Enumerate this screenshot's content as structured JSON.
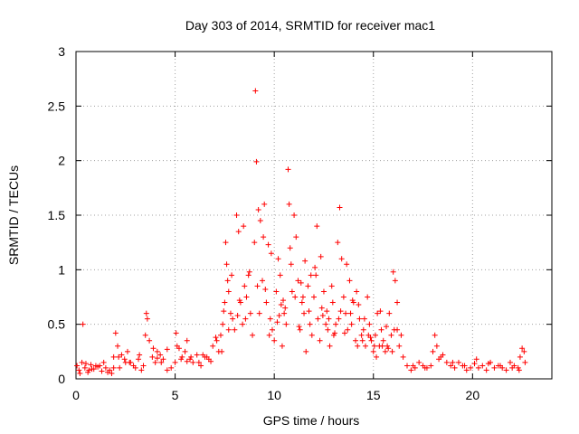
{
  "chart_data": {
    "type": "scatter",
    "title": "Day 303 of 2014, SRMTID for receiver mac1",
    "xlabel": "GPS time / hours",
    "ylabel": "SRMTID / TECUs",
    "xlim": [
      0,
      24
    ],
    "ylim": [
      0,
      3
    ],
    "xticks": [
      0,
      5,
      10,
      15,
      20
    ],
    "yticks": [
      0,
      0.5,
      1,
      1.5,
      2,
      2.5,
      3
    ],
    "xtick_labels": [
      "0",
      "5",
      "10",
      "15",
      "20"
    ],
    "ytick_labels": [
      "0",
      "0.5",
      "1",
      "1.5",
      "2",
      "2.5",
      "3"
    ],
    "grid": true,
    "marker": "plus",
    "color": "#ff0000",
    "series": [
      {
        "name": "SRMTID",
        "x": [
          0.05,
          0.15,
          0.3,
          0.45,
          0.6,
          0.75,
          0.9,
          1.1,
          1.3,
          1.5,
          1.7,
          1.8,
          1.9,
          2.0,
          2.1,
          2.15,
          2.3,
          2.45,
          2.6,
          2.75,
          2.9,
          3.0,
          3.15,
          3.3,
          3.5,
          3.55,
          3.6,
          3.7,
          3.85,
          4.0,
          4.1,
          4.25,
          4.4,
          4.6,
          4.8,
          5.0,
          5.05,
          5.1,
          5.2,
          5.35,
          5.5,
          5.6,
          5.75,
          5.9,
          6.1,
          6.3,
          6.5,
          6.7,
          6.9,
          7.1,
          7.2,
          7.3,
          7.4,
          7.5,
          7.55,
          7.6,
          7.65,
          7.7,
          7.8,
          7.9,
          8.0,
          8.1,
          8.2,
          8.3,
          8.4,
          8.5,
          8.6,
          8.7,
          8.8,
          8.9,
          9.0,
          9.05,
          9.1,
          9.2,
          9.3,
          9.4,
          9.5,
          9.6,
          9.7,
          9.8,
          9.9,
          10.0,
          10.1,
          10.2,
          10.3,
          10.4,
          10.5,
          10.6,
          10.7,
          10.75,
          10.8,
          10.9,
          11.0,
          11.1,
          11.2,
          11.3,
          11.4,
          11.5,
          11.6,
          11.7,
          11.8,
          11.9,
          12.0,
          12.1,
          12.2,
          12.3,
          12.4,
          12.5,
          12.6,
          12.7,
          12.8,
          12.9,
          13.0,
          13.1,
          13.2,
          13.3,
          13.4,
          13.5,
          13.6,
          13.7,
          13.8,
          13.9,
          14.0,
          14.1,
          14.2,
          14.3,
          14.4,
          14.5,
          14.6,
          14.7,
          14.8,
          14.9,
          15.0,
          15.1,
          15.2,
          15.3,
          15.4,
          15.5,
          15.6,
          15.7,
          15.8,
          15.9,
          16.0,
          16.1,
          16.2,
          16.3,
          16.5,
          16.7,
          16.9,
          17.1,
          17.3,
          17.5,
          17.7,
          17.9,
          18.0,
          18.1,
          18.2,
          18.3,
          18.5,
          18.7,
          18.9,
          19.1,
          19.3,
          19.5,
          19.7,
          19.9,
          20.1,
          20.3,
          20.5,
          20.7,
          20.9,
          21.1,
          21.3,
          21.5,
          21.7,
          21.9,
          22.1,
          22.3,
          22.4,
          22.5,
          22.6,
          22.65,
          0.2,
          0.5,
          0.8,
          1.2,
          1.9,
          2.5,
          3.2,
          4.1,
          4.6,
          5.6,
          6.6,
          7.05,
          7.45,
          7.85,
          8.25,
          8.55,
          9.15,
          9.45,
          9.75,
          10.15,
          10.35,
          10.55,
          11.05,
          11.35,
          11.55,
          11.85,
          12.15,
          12.45,
          12.75,
          13.05,
          13.35,
          13.65,
          13.95,
          14.25,
          14.55,
          14.85,
          15.15,
          15.45,
          15.75,
          16.05,
          16.2,
          0.35,
          0.65,
          1.0,
          1.4,
          1.6,
          2.2,
          2.7,
          3.4,
          3.9,
          4.3,
          5.3,
          5.8,
          6.2,
          6.4,
          6.8,
          7.35,
          7.7,
          8.15,
          8.45,
          8.75,
          9.25,
          9.55,
          9.85,
          10.25,
          10.45,
          10.85,
          11.25,
          11.45,
          11.75,
          12.05,
          12.35,
          12.65,
          12.95,
          13.25,
          13.55,
          13.85,
          14.15,
          14.45,
          14.75,
          15.05,
          15.35,
          15.65,
          15.95,
          16.4,
          17.0,
          17.6,
          18.4,
          19.0,
          19.6,
          20.2,
          20.8,
          21.4,
          22.0,
          22.35
        ],
        "y": [
          0.12,
          0.08,
          0.15,
          0.1,
          0.06,
          0.13,
          0.09,
          0.11,
          0.07,
          0.1,
          0.08,
          0.05,
          0.1,
          0.42,
          0.3,
          0.2,
          0.22,
          0.18,
          0.25,
          0.15,
          0.12,
          0.1,
          0.18,
          0.08,
          0.4,
          0.6,
          0.55,
          0.35,
          0.2,
          0.15,
          0.25,
          0.22,
          0.18,
          0.08,
          0.1,
          0.15,
          0.42,
          0.3,
          0.28,
          0.2,
          0.25,
          0.35,
          0.18,
          0.15,
          0.22,
          0.12,
          0.2,
          0.18,
          0.3,
          0.35,
          0.25,
          0.4,
          0.5,
          0.7,
          1.25,
          1.05,
          0.9,
          0.8,
          0.6,
          0.55,
          0.45,
          1.5,
          1.35,
          0.7,
          0.5,
          0.85,
          0.75,
          0.95,
          0.6,
          0.4,
          1.25,
          2.64,
          1.99,
          1.55,
          1.45,
          0.9,
          1.6,
          0.7,
          1.23,
          0.55,
          0.45,
          0.35,
          0.8,
          1.1,
          0.95,
          0.3,
          0.6,
          0.5,
          1.92,
          1.6,
          1.2,
          0.8,
          1.5,
          1.3,
          0.9,
          0.45,
          0.7,
          0.6,
          0.25,
          0.85,
          0.5,
          0.4,
          0.75,
          0.95,
          0.55,
          0.35,
          0.65,
          0.8,
          0.5,
          0.45,
          0.3,
          0.85,
          0.4,
          0.5,
          1.25,
          1.57,
          1.1,
          0.75,
          0.6,
          0.45,
          0.9,
          0.5,
          0.7,
          0.35,
          0.3,
          0.55,
          0.4,
          0.45,
          0.3,
          0.75,
          0.5,
          0.35,
          0.25,
          0.4,
          0.6,
          0.3,
          0.45,
          0.35,
          0.25,
          0.3,
          0.6,
          0.4,
          0.98,
          0.9,
          0.45,
          0.3,
          0.2,
          0.12,
          0.08,
          0.1,
          0.15,
          0.12,
          0.1,
          0.12,
          0.25,
          0.4,
          0.3,
          0.18,
          0.22,
          0.15,
          0.12,
          0.1,
          0.15,
          0.12,
          0.08,
          0.1,
          0.14,
          0.1,
          0.12,
          0.08,
          0.15,
          0.1,
          0.12,
          0.1,
          0.08,
          0.15,
          0.12,
          0.1,
          0.2,
          0.28,
          0.25,
          0.15,
          0.05,
          0.14,
          0.09,
          0.12,
          0.2,
          0.15,
          0.22,
          0.19,
          0.27,
          0.16,
          0.2,
          0.38,
          0.62,
          0.95,
          0.72,
          0.55,
          0.85,
          1.3,
          0.4,
          0.52,
          0.68,
          0.65,
          0.75,
          0.88,
          1.08,
          0.95,
          1.4,
          0.58,
          0.55,
          0.42,
          0.62,
          1.05,
          0.72,
          0.68,
          0.55,
          0.38,
          0.2,
          0.3,
          0.28,
          0.45,
          0.7,
          0.5,
          0.08,
          0.12,
          0.15,
          0.06,
          0.1,
          0.15,
          0.12,
          0.28,
          0.15,
          0.18,
          0.2,
          0.15,
          0.22,
          0.16,
          0.25,
          0.45,
          0.58,
          1.4,
          0.98,
          0.6,
          0.82,
          1.15,
          0.58,
          0.72,
          1.05,
          0.48,
          0.75,
          0.62,
          1.02,
          1.12,
          0.62,
          0.7,
          0.55,
          0.42,
          0.6,
          0.8,
          0.35,
          0.4,
          0.3,
          0.62,
          0.48,
          0.25,
          0.4,
          0.12,
          0.1,
          0.2,
          0.15,
          0.12,
          0.18,
          0.14,
          0.12,
          0.1,
          0.08
        ]
      }
    ]
  }
}
